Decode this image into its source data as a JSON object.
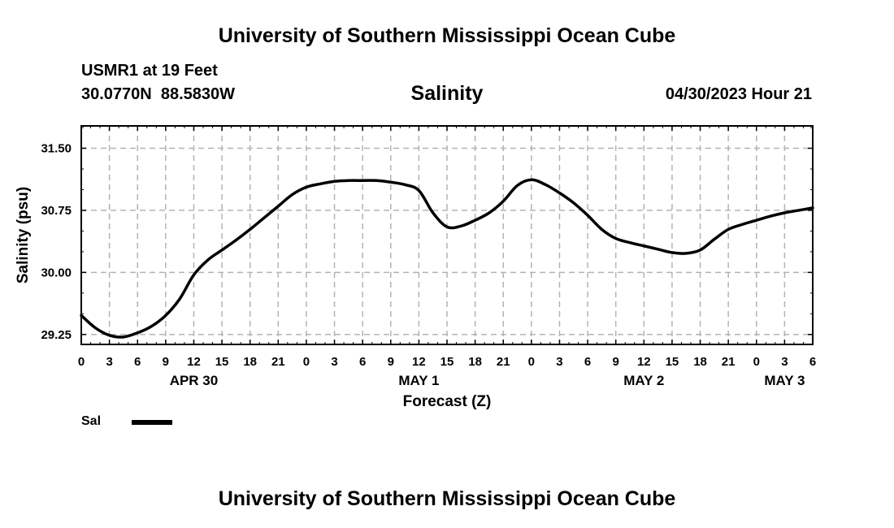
{
  "header": {
    "top_title": "University of Southern Mississippi Ocean Cube",
    "station_name": "USMR1 at 19 Feet",
    "station_coords": "30.0770N  88.5830W",
    "chart_title": "Salinity",
    "datetime": "04/30/2023 Hour 21"
  },
  "footer": {
    "bottom_title": "University of Southern Mississippi Ocean Cube"
  },
  "legend": {
    "label": "Sal"
  },
  "chart_data": {
    "type": "line",
    "title": "Salinity",
    "xlabel": "Forecast (Z)",
    "ylabel": "Salinity (psu)",
    "xlim": [
      0,
      78
    ],
    "ylim": [
      29.13,
      31.77
    ],
    "grid": true,
    "x_ticks": [
      0,
      3,
      6,
      9,
      12,
      15,
      18,
      21,
      24,
      27,
      30,
      33,
      36,
      39,
      42,
      45,
      48,
      51,
      54,
      57,
      60,
      63,
      66,
      69,
      72,
      75,
      78
    ],
    "x_tick_labels": [
      "0",
      "3",
      "6",
      "9",
      "12",
      "15",
      "18",
      "21",
      "0",
      "3",
      "6",
      "9",
      "12",
      "15",
      "18",
      "21",
      "0",
      "3",
      "6",
      "9",
      "12",
      "15",
      "18",
      "21",
      "0",
      "3",
      "6"
    ],
    "y_ticks": [
      29.25,
      30.0,
      30.75,
      31.5
    ],
    "y_tick_labels": [
      "29.25",
      "30.00",
      "30.75",
      "31.50"
    ],
    "date_labels": [
      {
        "x": 12,
        "label": "APR 30"
      },
      {
        "x": 36,
        "label": "MAY 1"
      },
      {
        "x": 60,
        "label": "MAY 2"
      },
      {
        "x": 75,
        "label": "MAY 3"
      }
    ],
    "series": [
      {
        "name": "Sal",
        "color": "#000000",
        "x": [
          0,
          1.5,
          3,
          4.5,
          6,
          7.5,
          9,
          10.5,
          12,
          13.5,
          15,
          16.5,
          18,
          19.5,
          21,
          22.5,
          24,
          25.5,
          27,
          28.5,
          30,
          31.5,
          33,
          34.5,
          36,
          37.5,
          39,
          40.5,
          42,
          43.5,
          45,
          46.5,
          48,
          49.5,
          51,
          52.5,
          54,
          55.5,
          57,
          58.5,
          60,
          61.5,
          63,
          64.5,
          66,
          67.5,
          69,
          70.5,
          72,
          73.5,
          75,
          76.5,
          78
        ],
        "values": [
          29.48,
          29.33,
          29.24,
          29.22,
          29.27,
          29.35,
          29.48,
          29.68,
          29.97,
          30.15,
          30.27,
          30.39,
          30.52,
          30.66,
          30.8,
          30.94,
          31.03,
          31.07,
          31.1,
          31.11,
          31.11,
          31.11,
          31.09,
          31.06,
          30.99,
          30.72,
          30.55,
          30.56,
          30.63,
          30.72,
          30.86,
          31.05,
          31.12,
          31.06,
          30.96,
          30.84,
          30.69,
          30.52,
          30.41,
          30.36,
          30.32,
          30.28,
          30.24,
          30.23,
          30.27,
          30.4,
          30.52,
          30.58,
          30.63,
          30.68,
          30.72,
          30.75,
          30.78
        ]
      }
    ]
  }
}
